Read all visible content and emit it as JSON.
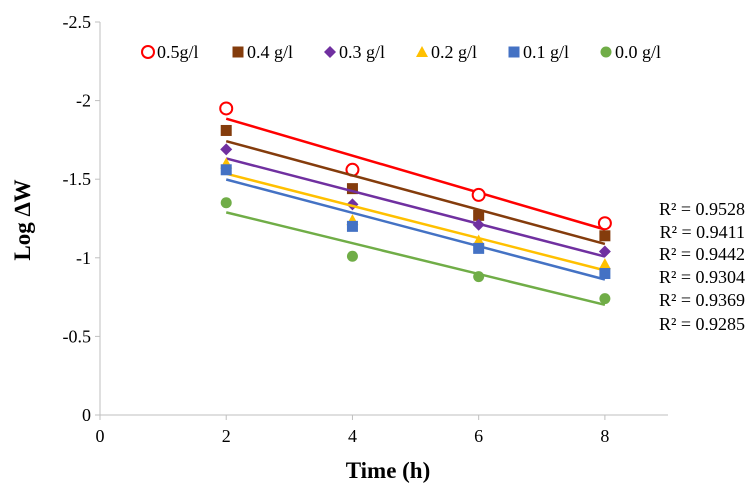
{
  "chart_data": {
    "type": "scatter",
    "title": "",
    "xlabel": "Time  (h)",
    "ylabel": "Log ∆W",
    "xlim": [
      0,
      9
    ],
    "ylim": [
      0,
      -2.5
    ],
    "y_axis_reversed": true,
    "x_ticks": [
      "0",
      "2",
      "4",
      "6",
      "8"
    ],
    "y_ticks": [
      "0",
      "-0.5",
      "-1",
      "-1.5",
      "-2",
      "-2.5"
    ],
    "x_tick_values": [
      0,
      2,
      4,
      6,
      8
    ],
    "y_tick_values": [
      0,
      -0.5,
      -1,
      -1.5,
      -2,
      -2.5
    ],
    "legend_position": "top",
    "trendline": "linear",
    "x": [
      2,
      4,
      6,
      8
    ],
    "series": [
      {
        "name": "0.5g/l",
        "color": "#FF0000",
        "marker": "open-circle",
        "values": [
          -1.95,
          -1.56,
          -1.4,
          -1.22
        ],
        "r2": "R² = 0.9528"
      },
      {
        "name": "0.4 g/l",
        "color": "#843C0C",
        "marker": "square",
        "values": [
          -1.81,
          -1.44,
          -1.27,
          -1.14
        ],
        "r2": "R² = 0.9411"
      },
      {
        "name": "0.3 g/l",
        "color": "#7030A0",
        "marker": "diamond",
        "values": [
          -1.69,
          -1.34,
          -1.21,
          -1.04
        ],
        "r2": "R² = 0.9442"
      },
      {
        "name": "0.2 g/l",
        "color": "#FFC000",
        "marker": "triangle",
        "values": [
          -1.6,
          -1.24,
          -1.11,
          -0.96
        ],
        "r2": "R² = 0.9304"
      },
      {
        "name": "0.1 g/l",
        "color": "#4472C4",
        "marker": "square",
        "values": [
          -1.56,
          -1.2,
          -1.06,
          -0.9
        ],
        "r2": "R² = 0.9369"
      },
      {
        "name": "0.0 g/l",
        "color": "#70AD47",
        "marker": "circle",
        "values": [
          -1.35,
          -1.01,
          -0.88,
          -0.74
        ],
        "r2": "R² = 0.9285"
      }
    ]
  }
}
